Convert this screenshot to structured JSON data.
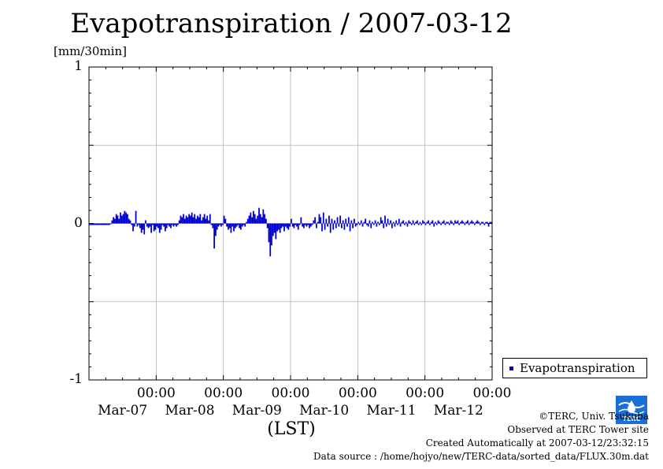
{
  "chart_data": {
    "type": "bar",
    "title": "Evapotranspiration / 2007-03-12",
    "ylabel": "[mm/30min]",
    "xlabel": "(LST)",
    "ylim": [
      -1,
      1
    ],
    "yticks": [
      {
        "value": 1,
        "label": "1"
      },
      {
        "value": 0,
        "label": "0"
      },
      {
        "value": -1,
        "label": "-1"
      }
    ],
    "xlim": [
      0,
      6
    ],
    "xticks": [
      {
        "day": 1,
        "time": "00:00",
        "date": "Mar-07"
      },
      {
        "day": 2,
        "time": "00:00",
        "date": "Mar-08"
      },
      {
        "day": 3,
        "time": "00:00",
        "date": "Mar-09"
      },
      {
        "day": 4,
        "time": "00:00",
        "date": "Mar-10"
      },
      {
        "day": 5,
        "time": "00:00",
        "date": "Mar-11"
      },
      {
        "day": 6,
        "time": "00:00",
        "date": "Mar-12"
      }
    ],
    "grid": true,
    "legend_position": "bottom-right",
    "series": [
      {
        "name": "Evapotranspiration",
        "color": "#0000cc",
        "values": [
          -0.01,
          -0.01,
          -0.01,
          -0.01,
          -0.01,
          -0.01,
          -0.01,
          -0.01,
          -0.01,
          -0.01,
          -0.01,
          -0.01,
          -0.01,
          -0.01,
          -0.01,
          -0.005,
          0.02,
          0.04,
          0.03,
          0.06,
          0.05,
          0.03,
          0.07,
          0.05,
          0.06,
          0.08,
          0.07,
          0.06,
          0.03,
          0.02,
          -0.01,
          -0.05,
          -0.02,
          0.08,
          -0.02,
          -0.01,
          -0.03,
          -0.06,
          -0.04,
          -0.07,
          0.02,
          -0.02,
          -0.03,
          -0.02,
          -0.06,
          -0.01,
          -0.05,
          -0.04,
          -0.02,
          -0.03,
          -0.06,
          -0.04,
          -0.01,
          -0.02,
          -0.05,
          -0.03,
          -0.01,
          -0.02,
          -0.03,
          -0.01,
          -0.02,
          -0.01,
          -0.02,
          -0.01,
          0.02,
          0.05,
          0.04,
          0.06,
          0.03,
          0.05,
          0.04,
          0.06,
          0.05,
          0.07,
          0.04,
          0.06,
          0.03,
          0.05,
          0.04,
          0.06,
          0.02,
          0.04,
          0.06,
          0.03,
          0.05,
          0.02,
          0.06,
          -0.01,
          -0.03,
          -0.16,
          -0.08,
          -0.04,
          -0.02,
          -0.01,
          -0.02,
          -0.01,
          0.05,
          0.03,
          -0.02,
          -0.04,
          -0.03,
          -0.06,
          -0.02,
          -0.05,
          -0.03,
          -0.02,
          -0.01,
          -0.03,
          -0.04,
          -0.02,
          -0.01,
          -0.02,
          0.01,
          0.03,
          0.05,
          0.07,
          0.04,
          0.08,
          0.06,
          0.03,
          0.05,
          0.1,
          0.06,
          0.04,
          0.09,
          0.06,
          0.03,
          -0.03,
          -0.12,
          -0.21,
          -0.14,
          -0.08,
          -0.06,
          -0.1,
          -0.05,
          -0.04,
          -0.06,
          -0.03,
          -0.02,
          -0.05,
          -0.02,
          -0.03,
          -0.04,
          -0.02,
          0.03,
          -0.02,
          -0.03,
          -0.01,
          -0.02,
          -0.04,
          -0.01,
          0.04,
          -0.02,
          -0.03,
          -0.01,
          -0.02,
          -0.01,
          -0.03,
          -0.02,
          -0.01,
          0.02,
          0.04,
          -0.03,
          0.01,
          0.06,
          0.04,
          -0.05,
          0.07,
          -0.04,
          0.03,
          -0.02,
          0.05,
          -0.06,
          0.03,
          -0.04,
          0.02,
          -0.03,
          0.04,
          -0.02,
          0.05,
          -0.03,
          0.02,
          -0.04,
          0.03,
          -0.02,
          0.04,
          -0.05,
          0.02,
          -0.03,
          0.03,
          -0.02,
          -0.01,
          0.01,
          -0.01,
          0.02,
          -0.02,
          0.01,
          0.03,
          -0.01,
          -0.02,
          0.02,
          -0.03,
          0.01,
          -0.01,
          0.02,
          -0.02,
          0.01,
          -0.01,
          0.04,
          0.02,
          -0.03,
          0.05,
          -0.02,
          0.03,
          -0.01,
          0.02,
          -0.03,
          0.01,
          -0.02,
          0.02,
          -0.01,
          0.03,
          -0.02,
          0.01,
          0.02,
          -0.01,
          0.01,
          -0.02,
          0.02,
          0.01,
          -0.01,
          0.02,
          -0.01,
          0.01,
          0.02,
          -0.01,
          0.01,
          -0.01,
          0.02,
          0.01,
          -0.01,
          0.01,
          0.02,
          -0.01,
          0.01,
          0.02,
          -0.02,
          0.01,
          -0.01,
          0.02,
          0.01,
          -0.01,
          0.01,
          0.02,
          -0.01,
          0.01,
          0.01,
          -0.01,
          0.02,
          0.01,
          -0.01,
          0.02,
          0.01,
          0.02,
          -0.01,
          0.01,
          0.02,
          0.01,
          -0.01,
          0.01,
          0.02,
          -0.01,
          0.01,
          0.02,
          0.01,
          -0.01,
          0.01,
          0.02,
          0.01,
          -0.01,
          0.01,
          0.01,
          -0.01,
          0.01,
          0.01,
          -0.02,
          0.01,
          0.01
        ]
      }
    ]
  },
  "legend": {
    "label": "Evapotranspiration"
  },
  "credits": {
    "line1": "©TERC, Univ. Tsukuba",
    "line2": "Observed at TERC Tower site",
    "line3": "Created Automatically at 2007-03-12/23:32:15",
    "line4": "Data source : /home/hojyo/new/TERC-data/sorted_data/FLUX.30m.dat"
  },
  "logo": {
    "icon": "terc-logo",
    "text": "TERC"
  }
}
